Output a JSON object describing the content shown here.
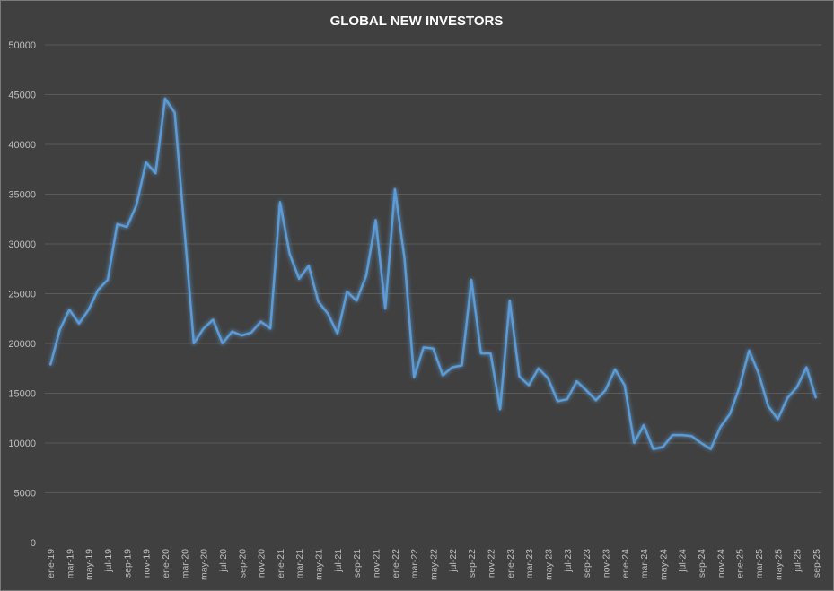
{
  "chart_data": {
    "type": "line",
    "title": "GLOBAL NEW INVESTORS",
    "xlabel": "",
    "ylabel": "",
    "ylim": [
      0,
      50000
    ],
    "y_ticks": [
      0,
      5000,
      10000,
      15000,
      20000,
      25000,
      30000,
      35000,
      40000,
      45000,
      50000
    ],
    "grid": true,
    "legend": "none",
    "x_frequency": "monthly, ene-19 to sep-25 (labels every 2 months)",
    "x_tick_labels": [
      "ene-19",
      "mar-19",
      "may-19",
      "jul-19",
      "sep-19",
      "nov-19",
      "ene-20",
      "mar-20",
      "may-20",
      "jul-20",
      "sep-20",
      "nov-20",
      "ene-21",
      "mar-21",
      "may-21",
      "jul-21",
      "sep-21",
      "nov-21",
      "ene-22",
      "mar-22",
      "may-22",
      "jul-22",
      "sep-22",
      "nov-22",
      "ene-23",
      "mar-23",
      "may-23",
      "jul-23",
      "sep-23",
      "nov-23",
      "ene-24",
      "mar-24",
      "may-24",
      "jul-24",
      "sep-24",
      "nov-24",
      "ene-25",
      "mar-25",
      "may-25",
      "jul-25",
      "sep-25"
    ],
    "series": [
      {
        "name": "Global new investors",
        "color": "#5b9bd5",
        "values": [
          17800,
          21400,
          23400,
          22000,
          23400,
          25400,
          26400,
          32000,
          31700,
          33900,
          38200,
          37100,
          44600,
          43200,
          31600,
          20000,
          21500,
          22400,
          20000,
          21200,
          20800,
          21100,
          22200,
          21500,
          34200,
          29000,
          26500,
          27800,
          24200,
          23000,
          21000,
          25200,
          24300,
          26800,
          32400,
          23500,
          35500,
          28600,
          16600,
          19600,
          19500,
          16800,
          17600,
          17800,
          26400,
          19000,
          19000,
          13400,
          24300,
          16700,
          15800,
          17500,
          16500,
          14200,
          14400,
          16200,
          15300,
          14300,
          15300,
          17400,
          15800,
          10000,
          11800,
          9400,
          9600,
          10800,
          10800,
          10700,
          10000,
          9400,
          11600,
          12900,
          15600,
          19300,
          17000,
          13700,
          12400,
          14500,
          15600,
          17600,
          14500
        ]
      }
    ]
  }
}
